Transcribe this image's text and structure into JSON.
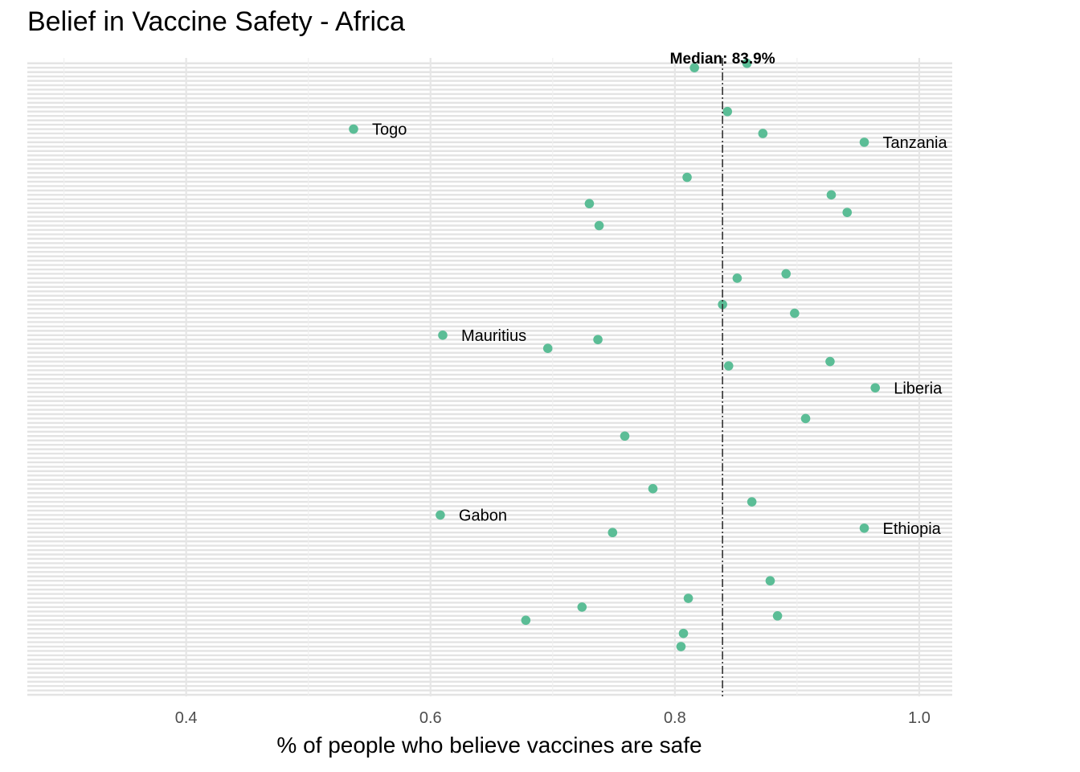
{
  "chart_data": {
    "type": "scatter",
    "title": "Belief in Vaccine Safety - Africa",
    "xlabel": "% of people who believe vaccines are safe",
    "ylabel": "",
    "xlim": [
      0.27,
      1.027
    ],
    "x_ticks": [
      0.4,
      0.6,
      0.8,
      1.0
    ],
    "x_tick_labels": [
      "0.4",
      "0.6",
      "0.8",
      "1.0"
    ],
    "grid": true,
    "point_color": "#5bbd96",
    "median": {
      "value": 0.839,
      "label": "Median: 83.9%"
    },
    "n_rows": 145,
    "points": [
      {
        "x": 0.859,
        "row": 1,
        "label": ""
      },
      {
        "x": 0.816,
        "row": 2,
        "label": ""
      },
      {
        "x": 0.843,
        "row": 12,
        "label": ""
      },
      {
        "x": 0.537,
        "row": 16,
        "label": "Togo"
      },
      {
        "x": 0.872,
        "row": 17,
        "label": ""
      },
      {
        "x": 0.955,
        "row": 19,
        "label": "Tanzania"
      },
      {
        "x": 0.81,
        "row": 27,
        "label": ""
      },
      {
        "x": 0.928,
        "row": 31,
        "label": ""
      },
      {
        "x": 0.73,
        "row": 33,
        "label": ""
      },
      {
        "x": 0.941,
        "row": 35,
        "label": ""
      },
      {
        "x": 0.738,
        "row": 38,
        "label": ""
      },
      {
        "x": 0.891,
        "row": 49,
        "label": ""
      },
      {
        "x": 0.851,
        "row": 50,
        "label": ""
      },
      {
        "x": 0.839,
        "row": 56,
        "label": ""
      },
      {
        "x": 0.898,
        "row": 58,
        "label": ""
      },
      {
        "x": 0.61,
        "row": 63,
        "label": "Mauritius"
      },
      {
        "x": 0.737,
        "row": 64,
        "label": ""
      },
      {
        "x": 0.696,
        "row": 66,
        "label": ""
      },
      {
        "x": 0.927,
        "row": 69,
        "label": ""
      },
      {
        "x": 0.844,
        "row": 70,
        "label": ""
      },
      {
        "x": 0.964,
        "row": 75,
        "label": "Liberia"
      },
      {
        "x": 0.907,
        "row": 82,
        "label": ""
      },
      {
        "x": 0.759,
        "row": 86,
        "label": ""
      },
      {
        "x": 0.782,
        "row": 98,
        "label": ""
      },
      {
        "x": 0.863,
        "row": 101,
        "label": ""
      },
      {
        "x": 0.608,
        "row": 104,
        "label": "Gabon"
      },
      {
        "x": 0.955,
        "row": 107,
        "label": "Ethiopia"
      },
      {
        "x": 0.749,
        "row": 108,
        "label": ""
      },
      {
        "x": 0.878,
        "row": 119,
        "label": ""
      },
      {
        "x": 0.811,
        "row": 123,
        "label": ""
      },
      {
        "x": 0.724,
        "row": 125,
        "label": ""
      },
      {
        "x": 0.884,
        "row": 127,
        "label": ""
      },
      {
        "x": 0.678,
        "row": 128,
        "label": ""
      },
      {
        "x": 0.807,
        "row": 131,
        "label": ""
      },
      {
        "x": 0.805,
        "row": 134,
        "label": ""
      }
    ]
  }
}
